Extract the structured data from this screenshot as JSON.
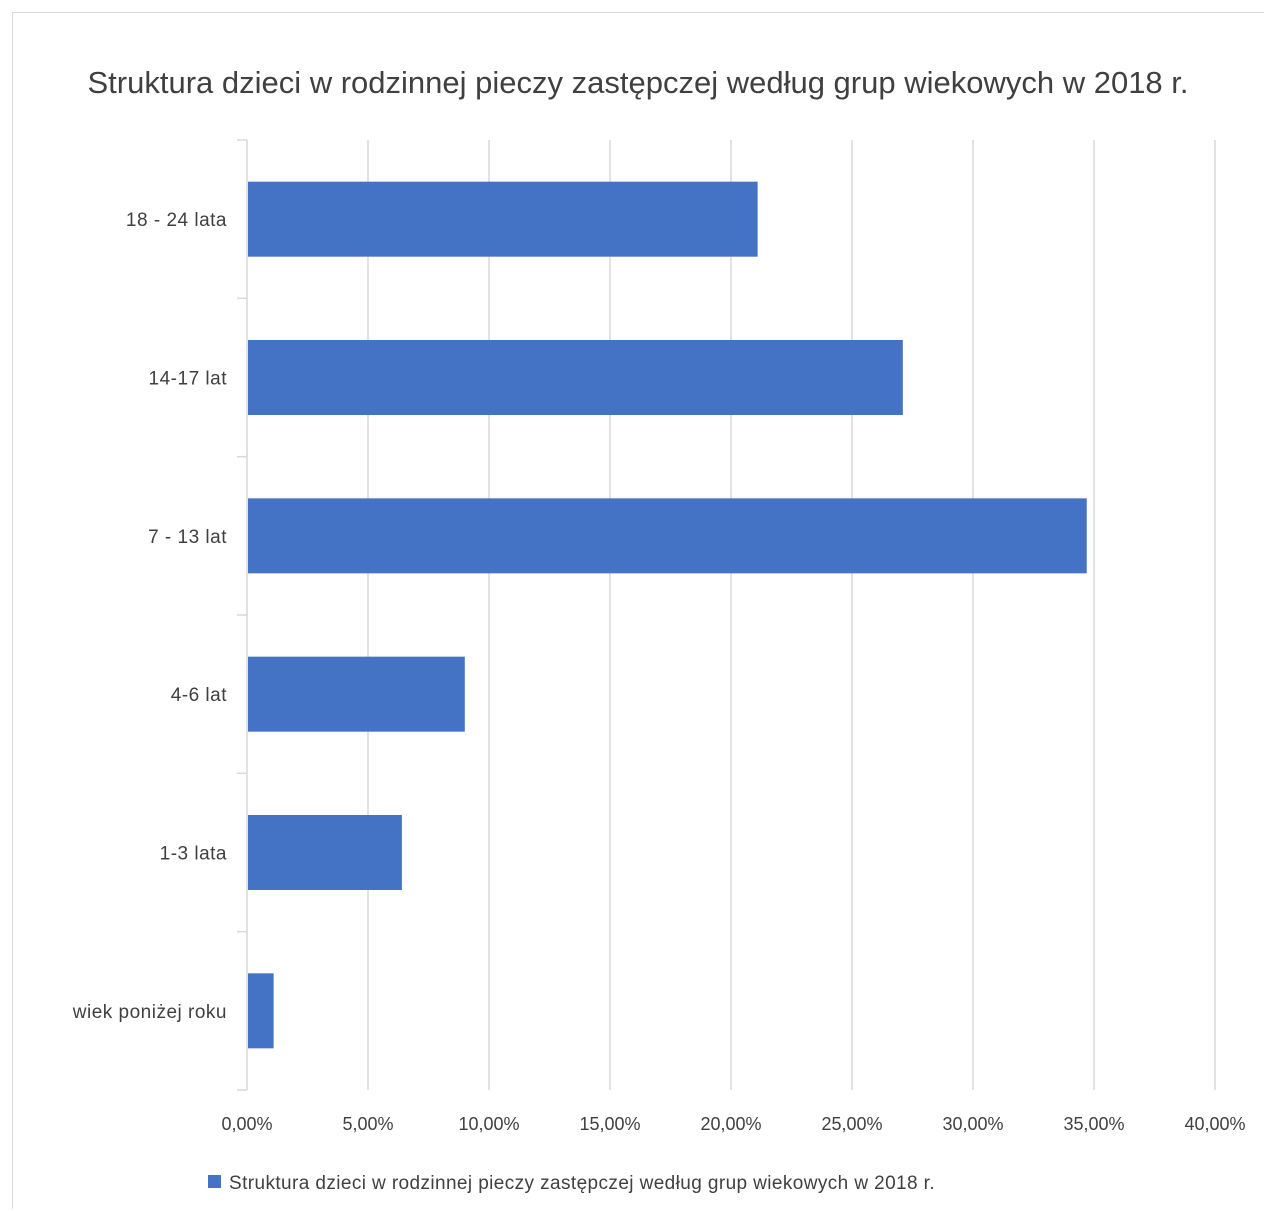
{
  "chart_data": {
    "type": "bar",
    "orientation": "horizontal",
    "title": "Struktura dzieci w rodzinnej pieczy zastępczej według grup wiekowych w 2018 r.",
    "categories": [
      "18 - 24 lata",
      "14-17 lat",
      "7 - 13 lat",
      "4-6 lat",
      "1-3 lata",
      "wiek poniżej roku"
    ],
    "series": [
      {
        "name": "Struktura dzieci w rodzinnej pieczy zastępczej według grup wiekowych w 2018 r.",
        "values": [
          21.1,
          27.1,
          34.7,
          9.0,
          6.4,
          1.1
        ],
        "color": "#4472c4"
      }
    ],
    "xlim": [
      0,
      40
    ],
    "x_ticks": [
      "0,00%",
      "5,00%",
      "10,00%",
      "15,00%",
      "20,00%",
      "25,00%",
      "30,00%",
      "35,00%",
      "40,00%"
    ],
    "grid": true,
    "legend_position": "bottom"
  }
}
